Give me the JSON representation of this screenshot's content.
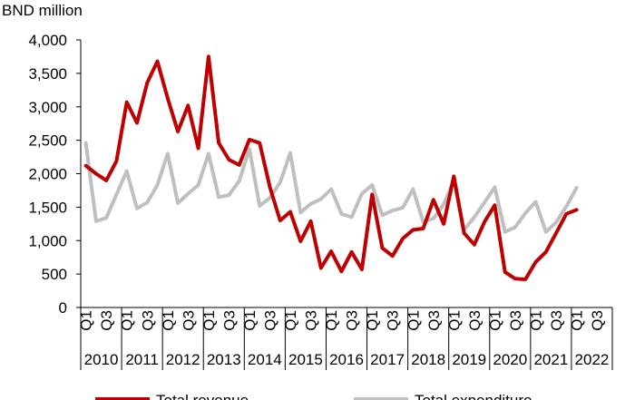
{
  "chart_data": {
    "type": "line",
    "ylabel": "BND million",
    "ylim": [
      0,
      4000
    ],
    "yticks": [
      "0",
      "500",
      "1,000",
      "1,500",
      "2,000",
      "2,500",
      "3,000",
      "3,500",
      "4,000"
    ],
    "ytick_values": [
      0,
      500,
      1000,
      1500,
      2000,
      2500,
      3000,
      3500,
      4000
    ],
    "quarter_labels": [
      "Q1",
      "Q3"
    ],
    "years": [
      "2010",
      "2011",
      "2012",
      "2013",
      "2014",
      "2015",
      "2016",
      "2017",
      "2018",
      "2019",
      "2020",
      "2021",
      "2022"
    ],
    "x": [
      "2010 Q1",
      "2010 Q2",
      "2010 Q3",
      "2010 Q4",
      "2011 Q1",
      "2011 Q2",
      "2011 Q3",
      "2011 Q4",
      "2012 Q1",
      "2012 Q2",
      "2012 Q3",
      "2012 Q4",
      "2013 Q1",
      "2013 Q2",
      "2013 Q3",
      "2013 Q4",
      "2014 Q1",
      "2014 Q2",
      "2014 Q3",
      "2014 Q4",
      "2015 Q1",
      "2015 Q2",
      "2015 Q3",
      "2015 Q4",
      "2016 Q1",
      "2016 Q2",
      "2016 Q3",
      "2016 Q4",
      "2017 Q1",
      "2017 Q2",
      "2017 Q3",
      "2017 Q4",
      "2018 Q1",
      "2018 Q2",
      "2018 Q3",
      "2018 Q4",
      "2019 Q1",
      "2019 Q2",
      "2019 Q3",
      "2019 Q4",
      "2020 Q1",
      "2020 Q2",
      "2020 Q3",
      "2020 Q4",
      "2021 Q1",
      "2021 Q2",
      "2021 Q3",
      "2021 Q4",
      "2022 Q1"
    ],
    "series": [
      {
        "name": "Total revenue",
        "color": "#c00000",
        "values": [
          2120,
          2000,
          1900,
          2190,
          3070,
          2760,
          3360,
          3680,
          3130,
          2630,
          3020,
          2380,
          3750,
          2460,
          2210,
          2130,
          2510,
          2460,
          1800,
          1300,
          1430,
          990,
          1290,
          590,
          840,
          540,
          830,
          570,
          1690,
          890,
          770,
          1030,
          1160,
          1180,
          1610,
          1250,
          1960,
          1110,
          940,
          1280,
          1530,
          530,
          430,
          420,
          680,
          830,
          1110,
          1400,
          1460
        ]
      },
      {
        "name": "Total expenditure",
        "color": "#bfbfbf",
        "values": [
          2460,
          1290,
          1340,
          1690,
          2040,
          1480,
          1570,
          1830,
          2300,
          1560,
          1700,
          1830,
          2300,
          1650,
          1680,
          1890,
          2370,
          1520,
          1640,
          1870,
          2310,
          1420,
          1550,
          1620,
          1770,
          1400,
          1350,
          1700,
          1830,
          1380,
          1450,
          1490,
          1770,
          1280,
          1330,
          1540,
          1900,
          1160,
          1350,
          1570,
          1800,
          1130,
          1200,
          1410,
          1580,
          1130,
          1270,
          1510,
          1790
        ]
      }
    ]
  }
}
